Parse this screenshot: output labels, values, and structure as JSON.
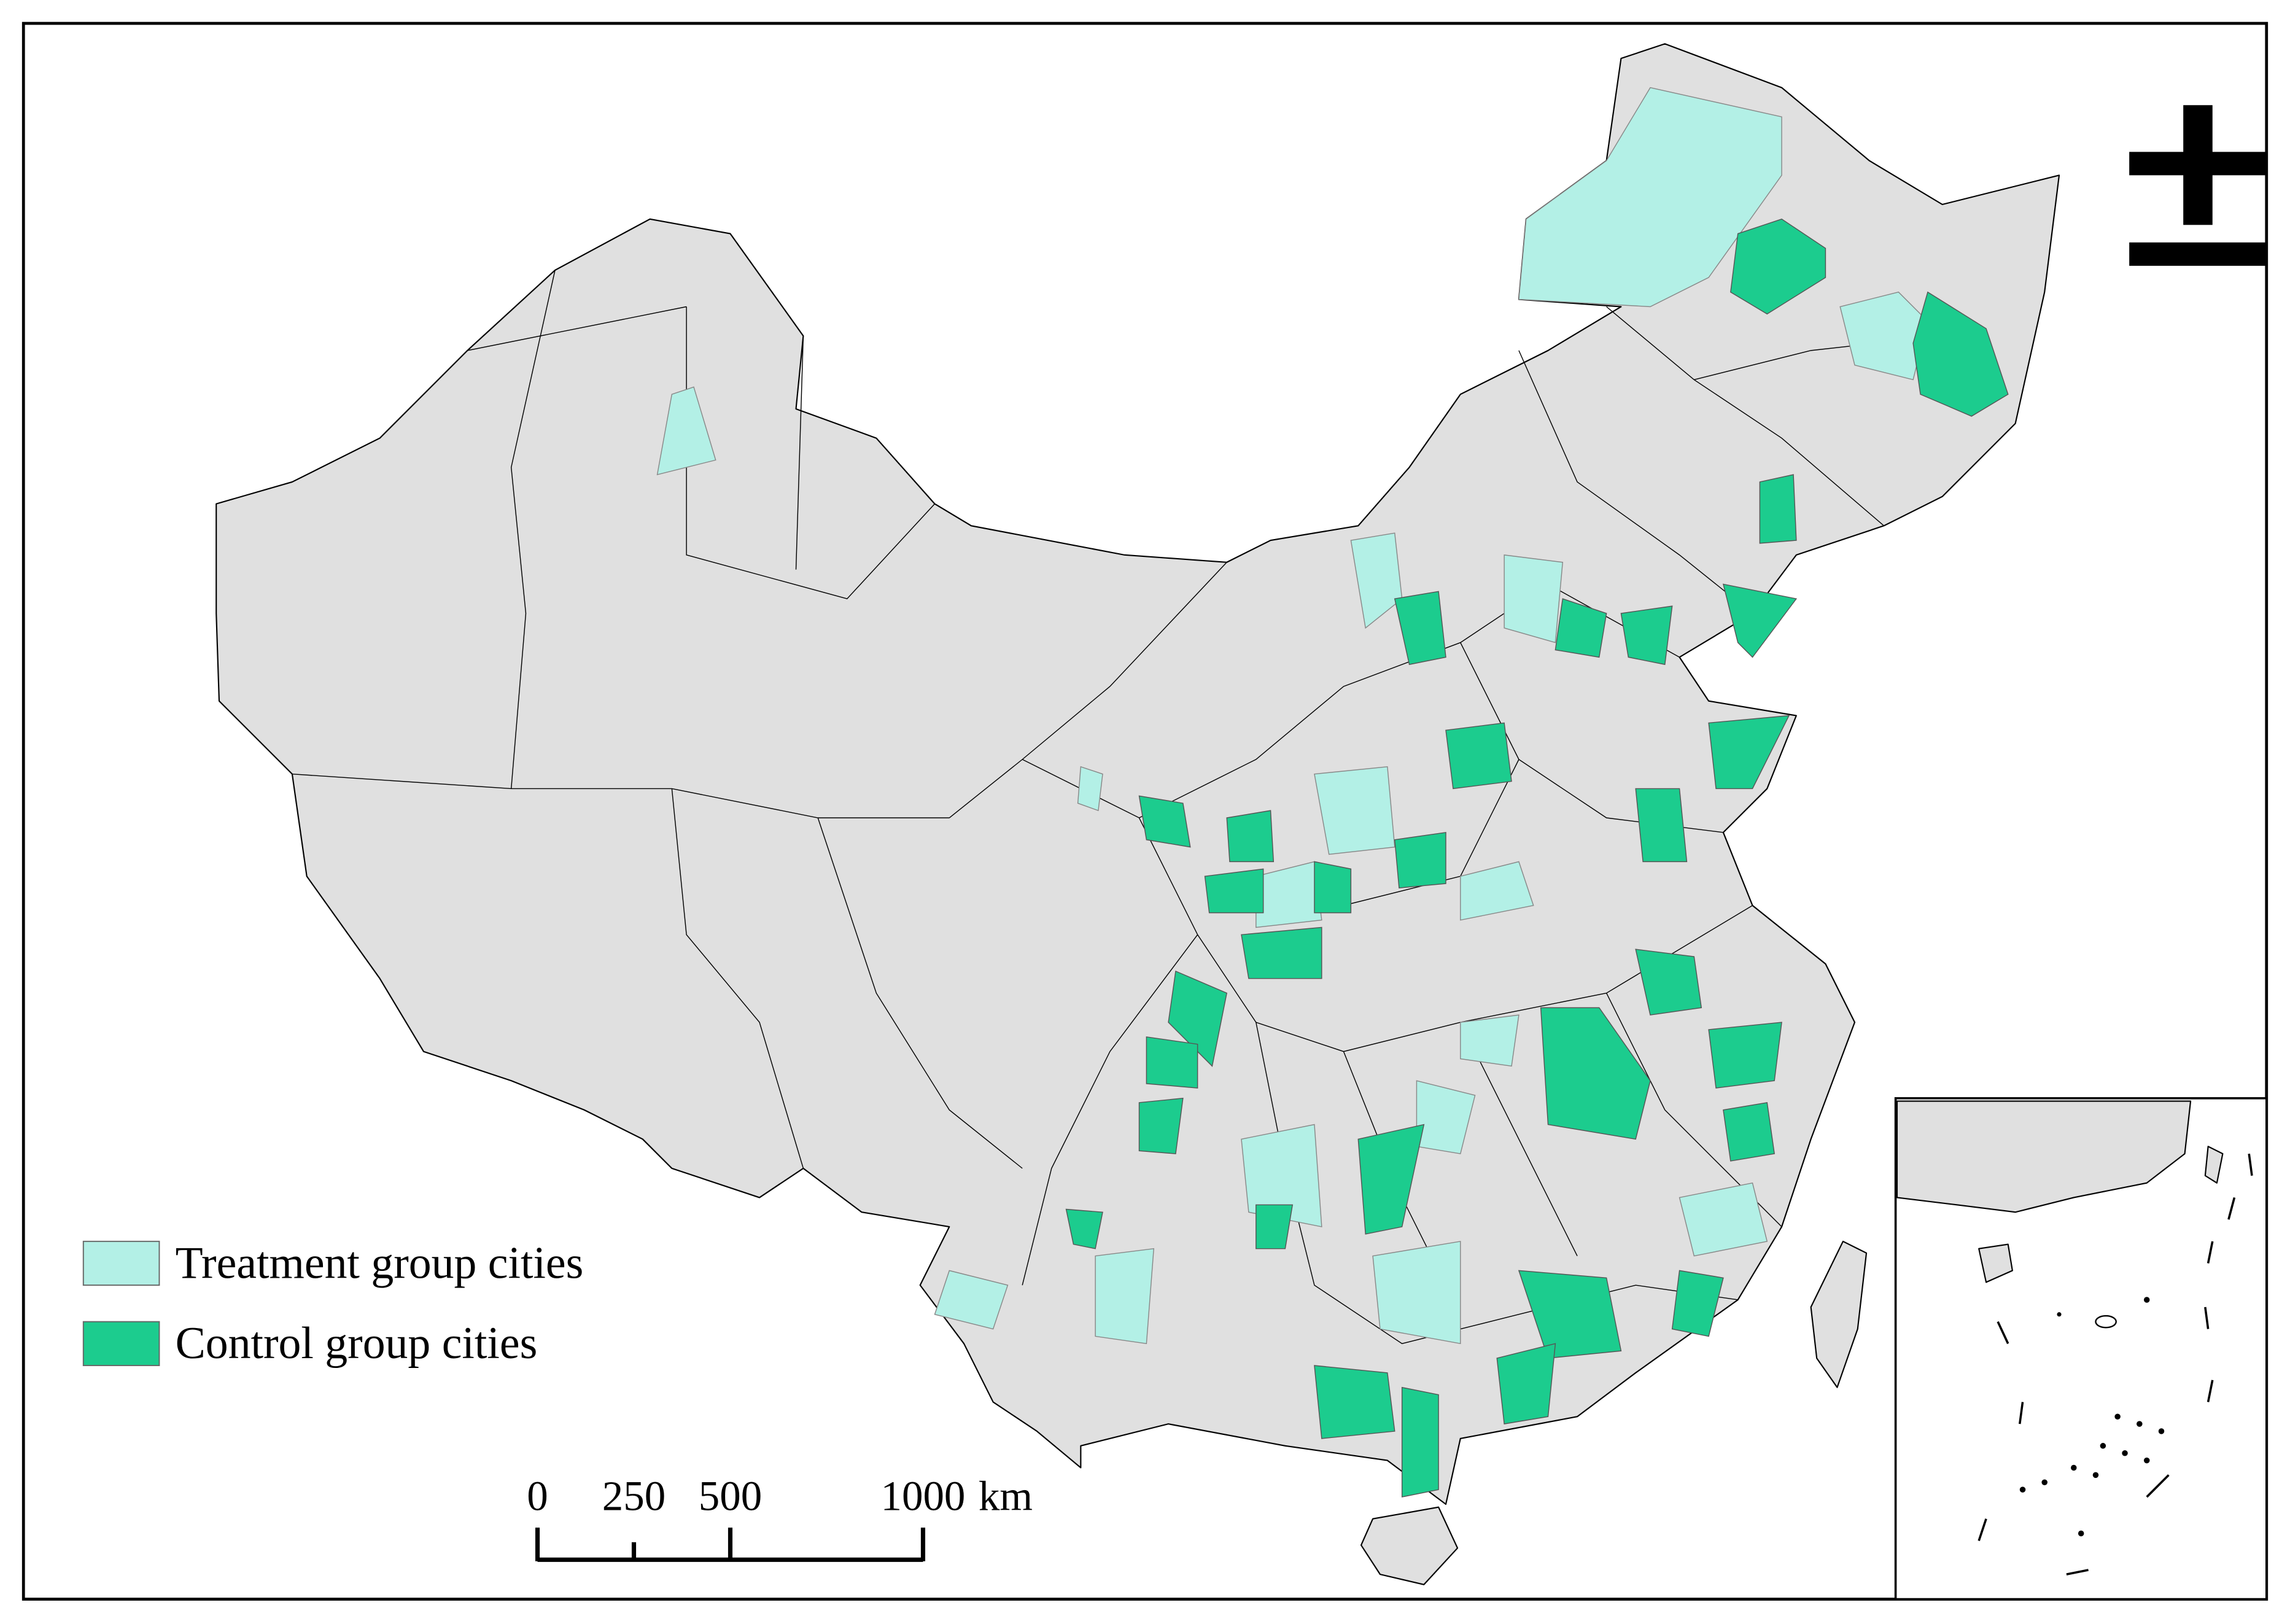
{
  "legend": {
    "items": [
      {
        "label": "Treatment group cities",
        "color": "#b3f0e6"
      },
      {
        "label": "Control group cities",
        "color": "#1ccc8e"
      }
    ]
  },
  "scale_bar": {
    "ticks": [
      0,
      250,
      500,
      1000
    ],
    "unit": "km"
  }
}
